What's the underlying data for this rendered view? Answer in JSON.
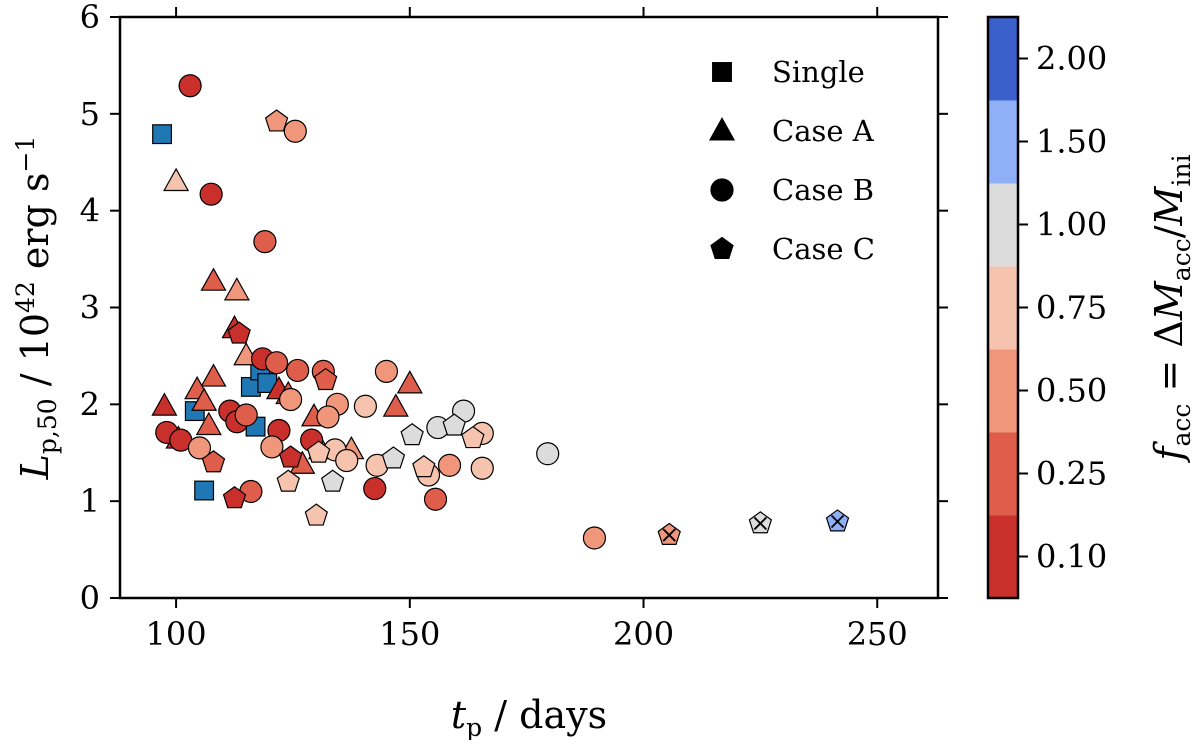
{
  "chart_data": {
    "type": "scatter",
    "xlabel": "t_p / days",
    "ylabel": "L_p,50 / 10^42 erg s^-1",
    "xlim": [
      88,
      263
    ],
    "ylim": [
      0,
      6
    ],
    "x_ticks": [
      100,
      150,
      200,
      250
    ],
    "y_ticks": [
      0,
      1,
      2,
      3,
      4,
      5,
      6
    ],
    "colorbar": {
      "label": "f_acc = ΔM_acc/M_ini",
      "tick_labels": [
        "0.10",
        "0.25",
        "0.50",
        "0.75",
        "1.00",
        "1.50",
        "2.00"
      ],
      "tick_positions": [
        0.5,
        1.5,
        2.5,
        3.5,
        4.5,
        5.5,
        6.5
      ],
      "colors": [
        "#c9302c",
        "#de5e4b",
        "#f0967a",
        "#f6c4ae",
        "#dcdcdc",
        "#8fb0f7",
        "#3b5fcb"
      ],
      "bins_note": "7 discrete bins, each shown as an equal-height band"
    },
    "legend": {
      "placement": "top-right",
      "entries": [
        {
          "marker": "square",
          "label": "Single"
        },
        {
          "marker": "triangle",
          "label": "Case A"
        },
        {
          "marker": "circle",
          "label": "Case B"
        },
        {
          "marker": "pentagon",
          "label": "Case C"
        }
      ]
    },
    "series": [
      {
        "name": "Single",
        "marker": "square",
        "points": [
          {
            "x": 97,
            "y": 4.79,
            "c": "single"
          },
          {
            "x": 104,
            "y": 1.93,
            "c": "single"
          },
          {
            "x": 106,
            "y": 1.11,
            "c": "single"
          },
          {
            "x": 116,
            "y": 2.18,
            "c": "single"
          },
          {
            "x": 118,
            "y": 2.35,
            "c": "single"
          },
          {
            "x": 119.5,
            "y": 2.22,
            "c": "single"
          },
          {
            "x": 117,
            "y": 1.77,
            "c": "single"
          }
        ]
      },
      {
        "name": "Case A",
        "marker": "triangle",
        "points": [
          {
            "x": 100,
            "y": 4.3,
            "c": 3
          },
          {
            "x": 108,
            "y": 3.27,
            "c": 1
          },
          {
            "x": 113,
            "y": 3.17,
            "c": 2
          },
          {
            "x": 112.5,
            "y": 2.78,
            "c": 0
          },
          {
            "x": 115,
            "y": 2.5,
            "c": 2
          },
          {
            "x": 108,
            "y": 2.28,
            "c": 1
          },
          {
            "x": 104.5,
            "y": 2.15,
            "c": 1
          },
          {
            "x": 106,
            "y": 2.03,
            "c": 1
          },
          {
            "x": 97.5,
            "y": 1.98,
            "c": 0
          },
          {
            "x": 107,
            "y": 1.78,
            "c": 1
          },
          {
            "x": 100.5,
            "y": 1.64,
            "c": 0
          },
          {
            "x": 122,
            "y": 2.15,
            "c": 0
          },
          {
            "x": 124,
            "y": 2.1,
            "c": 1
          },
          {
            "x": 129.5,
            "y": 1.87,
            "c": 1
          },
          {
            "x": 131,
            "y": 1.53,
            "c": 2
          },
          {
            "x": 137.5,
            "y": 1.53,
            "c": 2
          },
          {
            "x": 127,
            "y": 1.38,
            "c": 1
          },
          {
            "x": 150,
            "y": 2.21,
            "c": 1
          },
          {
            "x": 147,
            "y": 1.97,
            "c": 1
          }
        ]
      },
      {
        "name": "Case B",
        "marker": "circle",
        "points": [
          {
            "x": 103,
            "y": 5.29,
            "c": 0
          },
          {
            "x": 107.5,
            "y": 4.17,
            "c": 0
          },
          {
            "x": 119,
            "y": 3.68,
            "c": 1
          },
          {
            "x": 125.5,
            "y": 4.82,
            "c": 2
          },
          {
            "x": 118.5,
            "y": 2.47,
            "c": 0
          },
          {
            "x": 121.5,
            "y": 2.43,
            "c": 1
          },
          {
            "x": 126,
            "y": 2.35,
            "c": 1
          },
          {
            "x": 131.5,
            "y": 2.34,
            "c": 1
          },
          {
            "x": 145,
            "y": 2.34,
            "c": 2
          },
          {
            "x": 111.5,
            "y": 1.93,
            "c": 0
          },
          {
            "x": 113,
            "y": 1.82,
            "c": 0
          },
          {
            "x": 115,
            "y": 1.89,
            "c": 1
          },
          {
            "x": 122,
            "y": 1.73,
            "c": 0
          },
          {
            "x": 124.5,
            "y": 2.05,
            "c": 2
          },
          {
            "x": 134.5,
            "y": 2.0,
            "c": 2
          },
          {
            "x": 140.5,
            "y": 1.98,
            "c": 3
          },
          {
            "x": 132.5,
            "y": 1.87,
            "c": 2
          },
          {
            "x": 98,
            "y": 1.71,
            "c": 0
          },
          {
            "x": 101,
            "y": 1.63,
            "c": 0
          },
          {
            "x": 105,
            "y": 1.55,
            "c": 2
          },
          {
            "x": 120.5,
            "y": 1.56,
            "c": 2
          },
          {
            "x": 129,
            "y": 1.63,
            "c": 0
          },
          {
            "x": 134,
            "y": 1.53,
            "c": 3
          },
          {
            "x": 136.5,
            "y": 1.42,
            "c": 3
          },
          {
            "x": 143,
            "y": 1.37,
            "c": 3
          },
          {
            "x": 116,
            "y": 1.1,
            "c": 1
          },
          {
            "x": 142.5,
            "y": 1.13,
            "c": 0
          },
          {
            "x": 155.5,
            "y": 1.02,
            "c": 1
          },
          {
            "x": 154,
            "y": 1.27,
            "c": 3
          },
          {
            "x": 158.5,
            "y": 1.37,
            "c": 2
          },
          {
            "x": 156,
            "y": 1.76,
            "c": 4
          },
          {
            "x": 161.5,
            "y": 1.93,
            "c": 4
          },
          {
            "x": 165.5,
            "y": 1.7,
            "c": 3
          },
          {
            "x": 165.5,
            "y": 1.34,
            "c": 3
          },
          {
            "x": 179.5,
            "y": 1.49,
            "c": 4
          },
          {
            "x": 189.5,
            "y": 0.62,
            "c": 2
          }
        ]
      },
      {
        "name": "Case C",
        "marker": "pentagon",
        "points": [
          {
            "x": 121.5,
            "y": 4.92,
            "c": 2
          },
          {
            "x": 113.5,
            "y": 2.73,
            "c": 0
          },
          {
            "x": 132,
            "y": 2.25,
            "c": 1
          },
          {
            "x": 108,
            "y": 1.4,
            "c": 1
          },
          {
            "x": 112.5,
            "y": 1.03,
            "c": 0
          },
          {
            "x": 124.5,
            "y": 1.45,
            "c": 0
          },
          {
            "x": 130.5,
            "y": 1.5,
            "c": 3
          },
          {
            "x": 124,
            "y": 1.2,
            "c": 3
          },
          {
            "x": 133.5,
            "y": 1.2,
            "c": 4
          },
          {
            "x": 130,
            "y": 0.85,
            "c": 3
          },
          {
            "x": 146.5,
            "y": 1.44,
            "c": 4
          },
          {
            "x": 150.5,
            "y": 1.68,
            "c": 4
          },
          {
            "x": 159.5,
            "y": 1.78,
            "c": 4
          },
          {
            "x": 163.5,
            "y": 1.65,
            "c": 3
          },
          {
            "x": 153,
            "y": 1.35,
            "c": 3
          },
          {
            "x": 205.5,
            "y": 0.65,
            "c": 2,
            "cross": true
          },
          {
            "x": 225,
            "y": 0.77,
            "c": 4,
            "cross": true
          },
          {
            "x": 241.5,
            "y": 0.79,
            "c": 5,
            "cross": true
          }
        ]
      }
    ]
  }
}
